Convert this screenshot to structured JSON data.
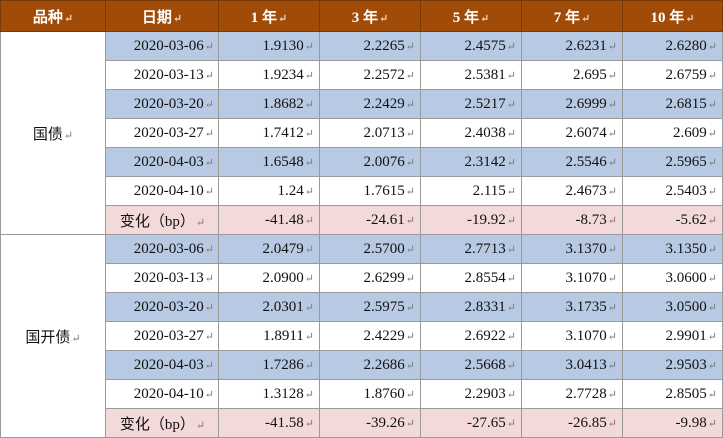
{
  "header": {
    "category": "品种",
    "date": "日期",
    "y1": "1 年",
    "y3": "3 年",
    "y5": "5 年",
    "y7": "7 年",
    "y10": "10 年",
    "mark": "↵"
  },
  "groups": [
    {
      "name": "国债",
      "rows": [
        {
          "date": "2020-03-06",
          "y1": "1.9130",
          "y3": "2.2265",
          "y5": "2.4575",
          "y7": "2.6231",
          "y10": "2.6280"
        },
        {
          "date": "2020-03-13",
          "y1": "1.9234",
          "y3": "2.2572",
          "y5": "2.5381",
          "y7": "2.695",
          "y10": "2.6759"
        },
        {
          "date": "2020-03-20",
          "y1": "1.8682",
          "y3": "2.2429",
          "y5": "2.5217",
          "y7": "2.6999",
          "y10": "2.6815"
        },
        {
          "date": "2020-03-27",
          "y1": "1.7412",
          "y3": "2.0713",
          "y5": "2.4038",
          "y7": "2.6074",
          "y10": "2.609"
        },
        {
          "date": "2020-04-03",
          "y1": "1.6548",
          "y3": "2.0076",
          "y5": "2.3142",
          "y7": "2.5546",
          "y10": "2.5965"
        },
        {
          "date": "2020-04-10",
          "y1": "1.24",
          "y3": "1.7615",
          "y5": "2.115",
          "y7": "2.4673",
          "y10": "2.5403"
        }
      ],
      "change": {
        "label": "变化（bp）",
        "y1": "-41.48",
        "y3": "-24.61",
        "y5": "-19.92",
        "y7": "-8.73",
        "y10": "-5.62"
      }
    },
    {
      "name": "国开债",
      "rows": [
        {
          "date": "2020-03-06",
          "y1": "2.0479",
          "y3": "2.5700",
          "y5": "2.7713",
          "y7": "3.1370",
          "y10": "3.1350"
        },
        {
          "date": "2020-03-13",
          "y1": "2.0900",
          "y3": "2.6299",
          "y5": "2.8554",
          "y7": "3.1070",
          "y10": "3.0600"
        },
        {
          "date": "2020-03-20",
          "y1": "2.0301",
          "y3": "2.5975",
          "y5": "2.8331",
          "y7": "3.1735",
          "y10": "3.0500"
        },
        {
          "date": "2020-03-27",
          "y1": "1.8911",
          "y3": "2.4229",
          "y5": "2.6922",
          "y7": "3.1070",
          "y10": "2.9901"
        },
        {
          "date": "2020-04-03",
          "y1": "1.7286",
          "y3": "2.2686",
          "y5": "2.5668",
          "y7": "3.0413",
          "y10": "2.9503"
        },
        {
          "date": "2020-04-10",
          "y1": "1.3128",
          "y3": "1.8760",
          "y5": "2.2903",
          "y7": "2.7728",
          "y10": "2.8505"
        }
      ],
      "change": {
        "label": "变化（bp）",
        "y1": "-41.58",
        "y3": "-39.26",
        "y5": "-27.65",
        "y7": "-26.85",
        "y10": "-9.98"
      }
    }
  ],
  "colors": {
    "header_bg": "#a04b08",
    "row_blue": "#b7c9e3",
    "row_change": "#f3d9d9"
  }
}
